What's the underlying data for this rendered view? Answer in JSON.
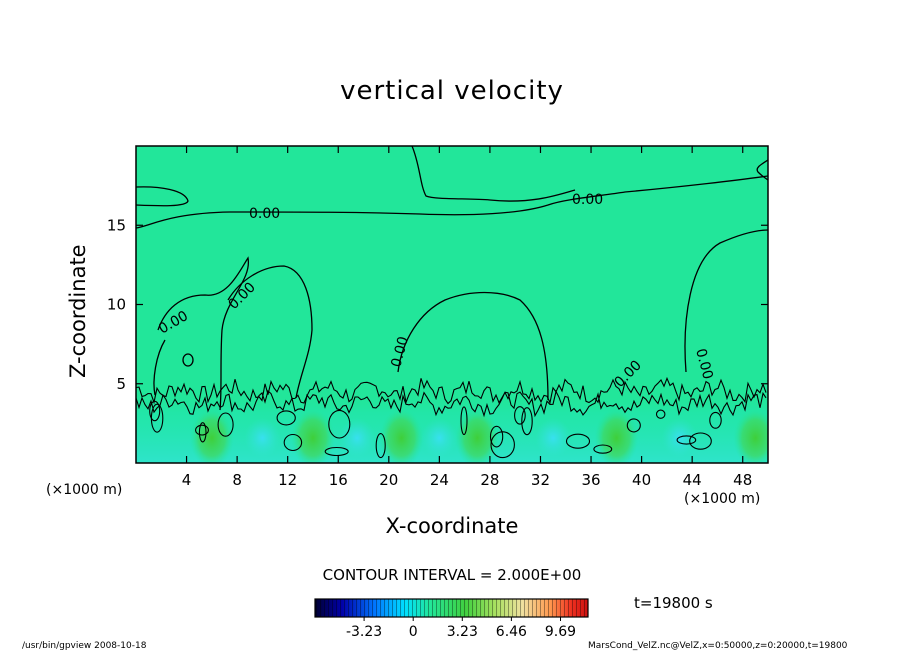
{
  "chart_data": {
    "type": "heatmap",
    "title": "vertical velocity",
    "xlabel": "X-coordinate",
    "ylabel": "Z-coordinate",
    "x_unit": "(×1000 m)",
    "xlim": [
      0,
      50
    ],
    "ylim": [
      0,
      20
    ],
    "x_ticks": [
      4,
      8,
      12,
      16,
      20,
      24,
      28,
      32,
      36,
      40,
      44,
      48
    ],
    "y_ticks": [
      5,
      10,
      15
    ],
    "contour_interval": "CONTOUR INTERVAL = 2.000E+00",
    "contour_labels": [
      "0.00",
      "0.00",
      "0.00",
      "0.00",
      "0.00",
      "0.00",
      "0.00"
    ],
    "colorbar": {
      "ticks": [
        "-3.23",
        "0",
        "3.23",
        "6.46",
        "9.69"
      ],
      "tick_values": [
        -3.23,
        0,
        3.23,
        6.46,
        9.69
      ],
      "range": [
        -6.46,
        11.5
      ]
    },
    "time": "t=19800 s",
    "warm_cores_x": [
      6,
      14,
      21,
      27,
      38,
      49
    ]
  },
  "footer": {
    "left": "/usr/bin/gpview   2008-10-18",
    "right": "MarsCond_VelZ.nc@VelZ,x=0:50000,z=0:20000,t=19800"
  },
  "colors": {
    "background_field": "#22e69a",
    "contour": "#000000"
  }
}
